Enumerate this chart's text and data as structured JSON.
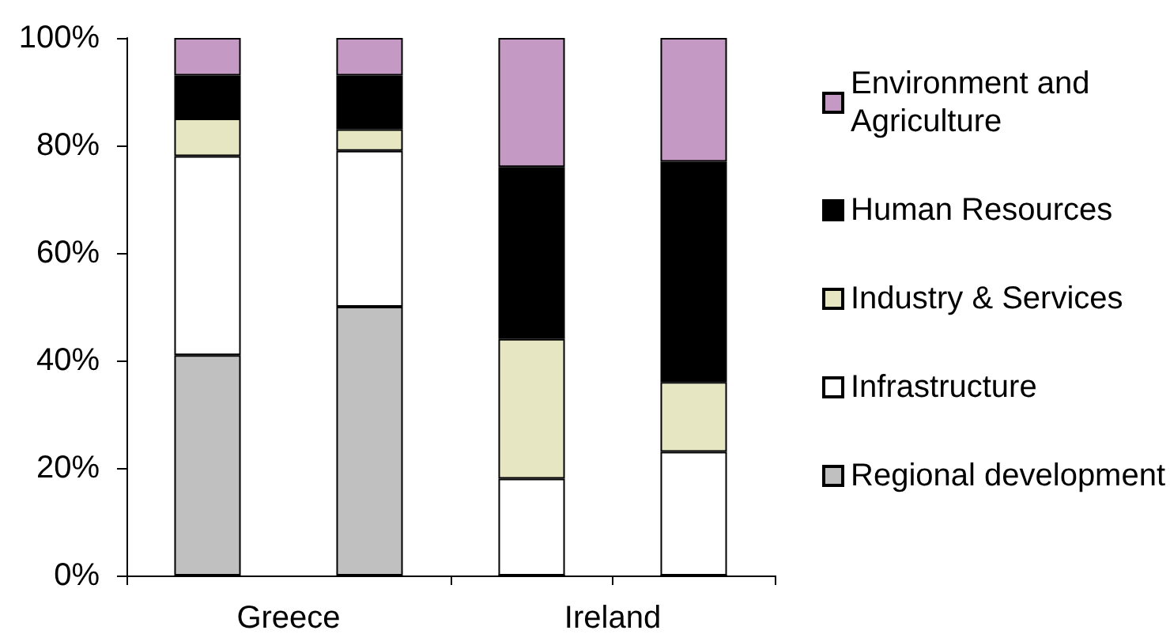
{
  "chart_data": {
    "type": "bar",
    "stacked": true,
    "categories": [
      null,
      null,
      null,
      null
    ],
    "annotations": [
      "Greece",
      "Ireland"
    ],
    "series": [
      {
        "name": "Regional development",
        "color": "#c0c0c0",
        "values": [
          41,
          50,
          0,
          0
        ]
      },
      {
        "name": "Infrastructure",
        "color": "#ffffff",
        "values": [
          37,
          29,
          18,
          23
        ]
      },
      {
        "name": "Industry & Services",
        "color": "#e6e6c2",
        "values": [
          7,
          4,
          26,
          13
        ]
      },
      {
        "name": "Human Resources",
        "color": "#000000",
        "values": [
          8,
          10,
          32,
          41
        ]
      },
      {
        "name": "Environment and Agriculture",
        "color": "#c49ac4",
        "values": [
          7,
          7,
          24,
          23
        ]
      }
    ],
    "ylim": [
      0,
      100
    ],
    "yticks": [
      {
        "value": 0,
        "label": "0%"
      },
      {
        "value": 20,
        "label": "20%"
      },
      {
        "value": 40,
        "label": "40%"
      },
      {
        "value": 60,
        "label": "60%"
      },
      {
        "value": 80,
        "label": "80%"
      },
      {
        "value": 100,
        "label": "100%"
      }
    ],
    "legend": "right"
  }
}
